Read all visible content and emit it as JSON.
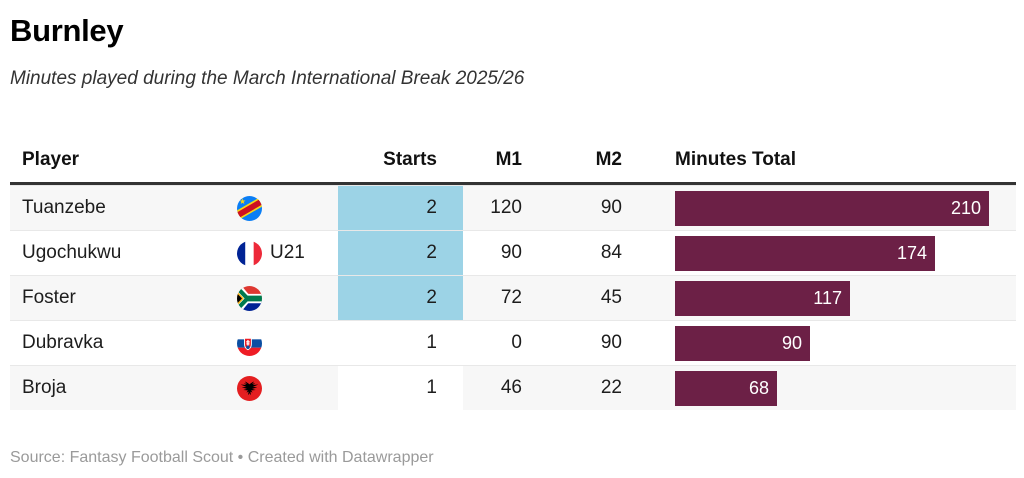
{
  "header": {
    "title": "Burnley",
    "subtitle": "Minutes played during the March International Break 2025/26"
  },
  "table": {
    "columns": {
      "player": "Player",
      "starts": "Starts",
      "m1": "M1",
      "m2": "M2",
      "total": "Minutes Total"
    },
    "bar_scale_max": 210,
    "colors": {
      "bar": "#6c2046",
      "starts_highlight": "#9cd3e6",
      "zebra_stripe": "#f7f7f7"
    },
    "rows": [
      {
        "player": "Tuanzebe",
        "flag": "dr-congo",
        "note": "",
        "starts": "2",
        "m1": "120",
        "m2": "90",
        "total": 210,
        "starts_highlight": true
      },
      {
        "player": "Ugochukwu",
        "flag": "france",
        "note": "U21",
        "starts": "2",
        "m1": "90",
        "m2": "84",
        "total": 174,
        "starts_highlight": true
      },
      {
        "player": "Foster",
        "flag": "south-africa",
        "note": "",
        "starts": "2",
        "m1": "72",
        "m2": "45",
        "total": 117,
        "starts_highlight": true
      },
      {
        "player": "Dubravka",
        "flag": "slovakia",
        "note": "",
        "starts": "1",
        "m1": "0",
        "m2": "90",
        "total": 90,
        "starts_highlight": false
      },
      {
        "player": "Broja",
        "flag": "albania",
        "note": "",
        "starts": "1",
        "m1": "46",
        "m2": "22",
        "total": 68,
        "starts_highlight": false
      }
    ]
  },
  "footer": {
    "text": "Source: Fantasy Football Scout • Created with Datawrapper"
  },
  "chart_data": {
    "type": "table",
    "title": "Burnley",
    "subtitle": "Minutes played during the March International Break 2025/26",
    "columns": [
      "Player",
      "Starts",
      "M1",
      "M2",
      "Minutes Total"
    ],
    "rows": [
      [
        "Tuanzebe",
        2,
        120,
        90,
        210
      ],
      [
        "Ugochukwu (U21)",
        2,
        90,
        84,
        174
      ],
      [
        "Foster",
        2,
        72,
        45,
        117
      ],
      [
        "Dubravka",
        1,
        0,
        90,
        90
      ],
      [
        "Broja",
        1,
        46,
        22,
        68
      ]
    ],
    "bar_column": "Minutes Total",
    "bar_range": [
      0,
      210
    ],
    "starts_highlighted_when": 2,
    "source": "Fantasy Football Scout"
  }
}
